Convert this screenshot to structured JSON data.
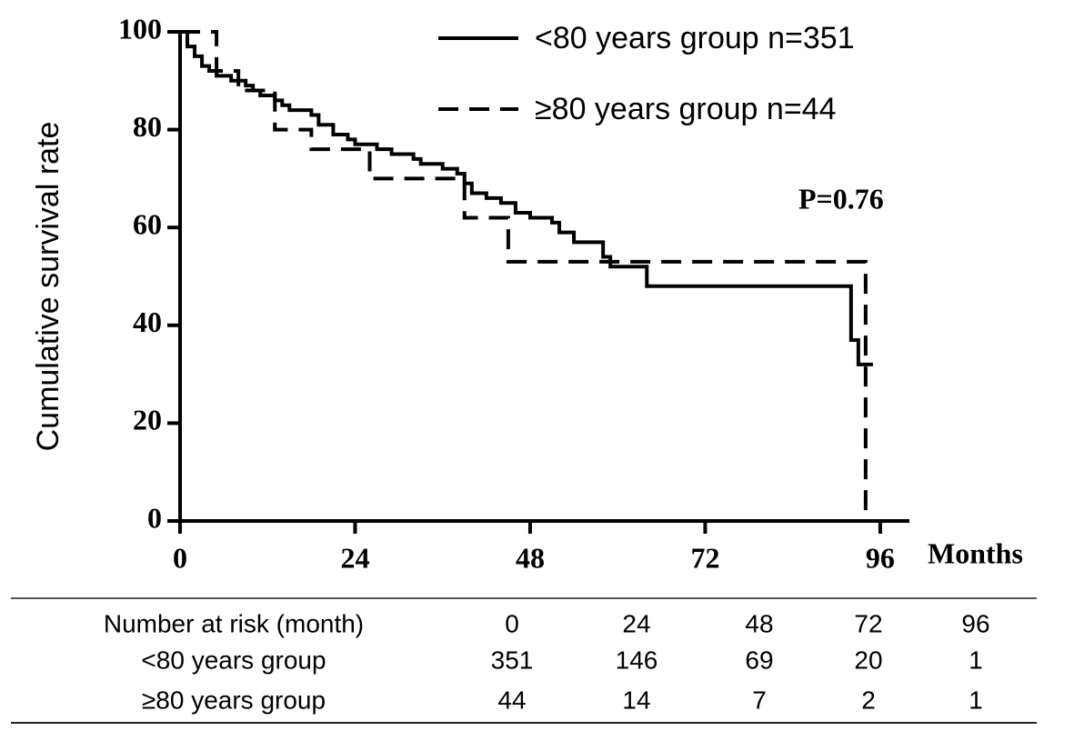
{
  "chart_data": {
    "type": "line",
    "y_label": "Cumulative survival rate",
    "x_label": "Months",
    "annotation": "P=0.76",
    "xlim": [
      0,
      100
    ],
    "xticks": [
      0,
      24,
      48,
      72,
      96
    ],
    "ylim": [
      0,
      100
    ],
    "yticks": [
      0,
      20,
      40,
      60,
      80,
      100
    ],
    "legend": "top-right",
    "series": [
      {
        "name": "<80 years group n=351",
        "color": "#000000",
        "dash": false,
        "x": [
          0,
          1,
          1,
          2,
          2,
          3,
          3,
          4,
          4,
          5,
          5,
          7,
          7,
          9,
          9,
          10,
          10,
          11,
          11,
          13,
          13,
          14,
          14,
          15,
          15,
          18,
          18,
          19,
          19,
          21,
          21,
          23,
          23,
          24,
          24,
          27,
          27,
          29,
          29,
          32,
          32,
          33,
          33,
          36,
          36,
          38,
          38,
          39,
          39,
          40,
          40,
          42,
          42,
          44,
          44,
          46,
          46,
          48,
          48,
          51,
          51,
          52,
          52,
          54,
          54,
          58,
          58,
          59,
          59,
          64,
          64,
          92,
          92,
          93,
          93,
          95
        ],
        "values": [
          100,
          100,
          97,
          97,
          95,
          95,
          93,
          93,
          92,
          92,
          91,
          91,
          90,
          90,
          89,
          89,
          88,
          88,
          87,
          87,
          86,
          86,
          85,
          85,
          84,
          84,
          83,
          83,
          81,
          81,
          79,
          79,
          78,
          78,
          77,
          77,
          76,
          76,
          75,
          75,
          74,
          74,
          73,
          73,
          72,
          72,
          71,
          71,
          69,
          69,
          67,
          67,
          66,
          66,
          65,
          65,
          63,
          63,
          62,
          62,
          61,
          61,
          59,
          59,
          57,
          57,
          54,
          54,
          52,
          52,
          48,
          48,
          37,
          37,
          32,
          32
        ]
      },
      {
        "name": "≥80 years group n=44",
        "color": "#000000",
        "dash": true,
        "x": [
          0,
          5,
          5,
          8,
          8,
          13,
          13,
          18,
          18,
          26,
          26,
          39,
          39,
          45,
          45,
          94,
          94
        ],
        "values": [
          100,
          100,
          92,
          92,
          88,
          88,
          80,
          80,
          76,
          76,
          70,
          70,
          62,
          62,
          53,
          53,
          0
        ]
      }
    ],
    "risk_table": {
      "header": [
        "Number at risk (month)",
        "0",
        "24",
        "48",
        "72",
        "96"
      ],
      "rows": [
        [
          "<80 years group",
          "351",
          "146",
          "69",
          "20",
          "1"
        ],
        [
          "≥80 years group",
          "44",
          "14",
          "7",
          "2",
          "1"
        ]
      ]
    }
  }
}
